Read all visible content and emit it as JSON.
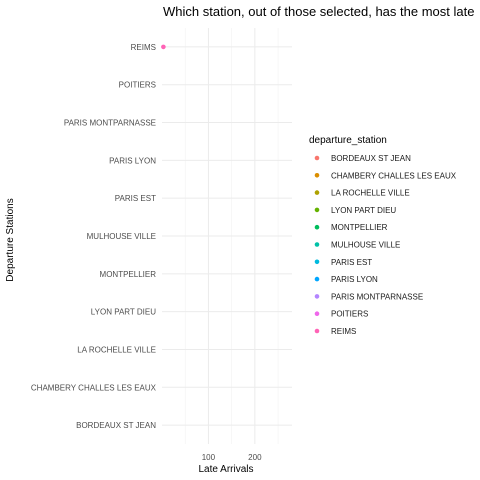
{
  "chart_data": {
    "type": "scatter",
    "title": "Which station, out of those selected, has the most late",
    "xlabel": "Late Arrivals",
    "ylabel": "Departure Stations",
    "xlim": [
      0,
      280
    ],
    "x_ticks": [
      100,
      200
    ],
    "categories": [
      "BORDEAUX ST JEAN",
      "CHAMBERY CHALLES LES EAUX",
      "LA ROCHELLE VILLE",
      "LYON PART DIEU",
      "MONTPELLIER",
      "MULHOUSE VILLE",
      "PARIS EST",
      "PARIS LYON",
      "PARIS MONTPARNASSE",
      "POITIERS",
      "REIMS"
    ],
    "points": [
      {
        "station": "REIMS",
        "x": 3
      }
    ],
    "grid": true,
    "legend": {
      "title": "departure_station",
      "position": "right",
      "entries": [
        {
          "label": "BORDEAUX ST JEAN",
          "color": "#F8766D"
        },
        {
          "label": "CHAMBERY CHALLES LES EAUX",
          "color": "#DB8E00"
        },
        {
          "label": "LA ROCHELLE VILLE",
          "color": "#AEA200"
        },
        {
          "label": "LYON PART DIEU",
          "color": "#64B200"
        },
        {
          "label": "MONTPELLIER",
          "color": "#00BD5C"
        },
        {
          "label": "MULHOUSE VILLE",
          "color": "#00C1A7"
        },
        {
          "label": "PARIS EST",
          "color": "#00BADE"
        },
        {
          "label": "PARIS LYON",
          "color": "#00A6FF"
        },
        {
          "label": "PARIS MONTPARNASSE",
          "color": "#B385FF"
        },
        {
          "label": "POITIERS",
          "color": "#EF67EB"
        },
        {
          "label": "REIMS",
          "color": "#FF63B6"
        }
      ]
    }
  }
}
